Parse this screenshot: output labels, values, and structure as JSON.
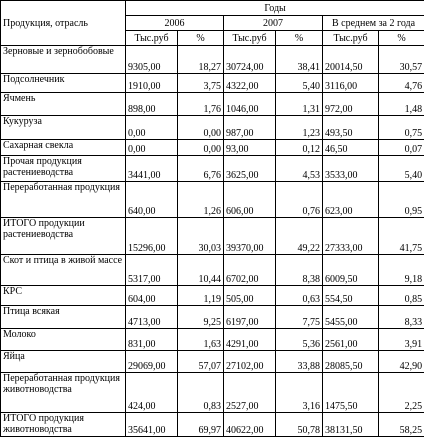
{
  "header": {
    "product": "Продукция, отрасль",
    "years": "Годы",
    "year1": "2006",
    "year2": "2007",
    "average": "В среднем за 2 года",
    "units": [
      "Тыс.руб",
      "%",
      "Тыс.руб",
      "%",
      "Тыс.руб",
      "%"
    ]
  },
  "table": {
    "rows": [
      [
        "Зерновые и зернобобовые",
        "9305,00",
        "18,27",
        "30724,00",
        "38,41",
        "20014,50",
        "30,57"
      ],
      [
        "Подсолнечник",
        "1910,00",
        "3,75",
        "4322,00",
        "5,40",
        "3116,00",
        "4,76"
      ],
      [
        "Ячмень",
        "898,00",
        "1,76",
        "1046,00",
        "1,31",
        "972,00",
        "1,48"
      ],
      [
        "Кукуруза",
        "0,00",
        "0,00",
        "987,00",
        "1,23",
        "493,50",
        "0,75"
      ],
      [
        "Сахарная свекла",
        "0,00",
        "0,00",
        "93,00",
        "0,12",
        "46,50",
        "0,07"
      ],
      [
        "Прочая продукция растениеводства",
        "3441,00",
        "6,76",
        "3625,00",
        "4,53",
        "3533,00",
        "5,40"
      ],
      [
        "Переработанная продукция",
        "640,00",
        "1,26",
        "606,00",
        "0,76",
        "623,00",
        "0,95"
      ],
      [
        "ИТОГО продукции растениеводства",
        "15296,00",
        "30,03",
        "39370,00",
        "49,22",
        "27333,00",
        "41,75"
      ],
      [
        "Скот и птица в живой массе",
        "5317,00",
        "10,44",
        "6702,00",
        "8,38",
        "6009,50",
        "9,18"
      ],
      [
        "КРС",
        "604,00",
        "1,19",
        "505,00",
        "0,63",
        "554,50",
        "0,85"
      ],
      [
        "Птица всякая",
        "4713,00",
        "9,25",
        "6197,00",
        "7,75",
        "5455,00",
        "8,33"
      ],
      [
        "Молоко",
        "831,00",
        "1,63",
        "4291,00",
        "5,36",
        "2561,00",
        "3,91"
      ],
      [
        "Яйца",
        "29069,00",
        "57,07",
        "27102,00",
        "33,88",
        "28085,50",
        "42,90"
      ],
      [
        "Переработанная продукция животноводства",
        "424,00",
        "0,83",
        "2527,00",
        "3,16",
        "1475,50",
        "2,25"
      ],
      [
        "ИТОГО продукция животноводства",
        "35641,00",
        "69,97",
        "40622,00",
        "50,78",
        "38131,50",
        "58,25"
      ]
    ]
  }
}
